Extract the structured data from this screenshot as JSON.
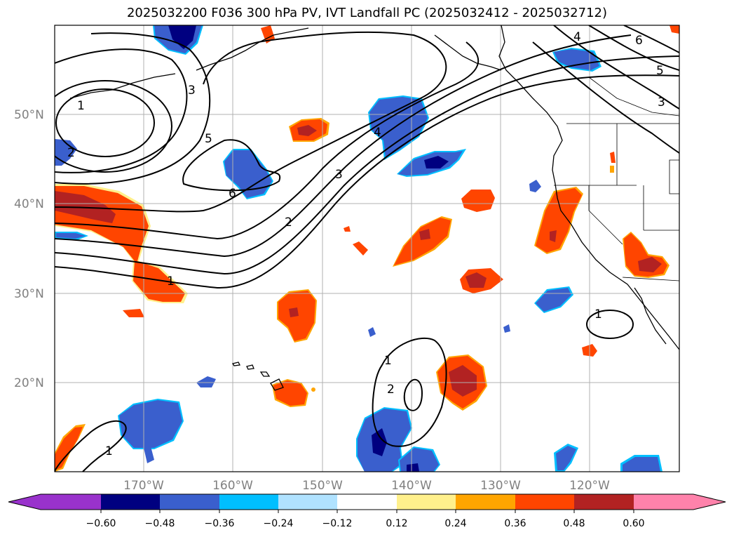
{
  "title": "2025032200 F036 300 hPa PV, IVT Landfall PC (2025032412 - 2025032712)",
  "latitude_labels": [
    "50°N",
    "40°N",
    "30°N",
    "20°N"
  ],
  "longitude_labels": [
    "170°W",
    "160°W",
    "150°W",
    "140°W",
    "130°W",
    "120°W"
  ],
  "colorbar": {
    "tick_labels": [
      "−0.60",
      "−0.48",
      "−0.36",
      "−0.24",
      "−0.12",
      "0.12",
      "0.24",
      "0.36",
      "0.48",
      "0.60"
    ],
    "colors": [
      "#9932cc",
      "#000080",
      "#3a5fcd",
      "#00bfff",
      "#b0e2ff",
      "#ffffff",
      "#fff08c",
      "#ffa500",
      "#ff4500",
      "#b22222",
      "#ff82ab"
    ]
  },
  "contour_labels": {
    "north_high": [
      "1",
      "2",
      "3",
      "5",
      "6"
    ],
    "jet": [
      "4",
      "3",
      "2",
      "1"
    ],
    "east": [
      "4",
      "6",
      "5",
      "3"
    ],
    "south": [
      "1",
      "2",
      "1",
      "1"
    ]
  }
}
